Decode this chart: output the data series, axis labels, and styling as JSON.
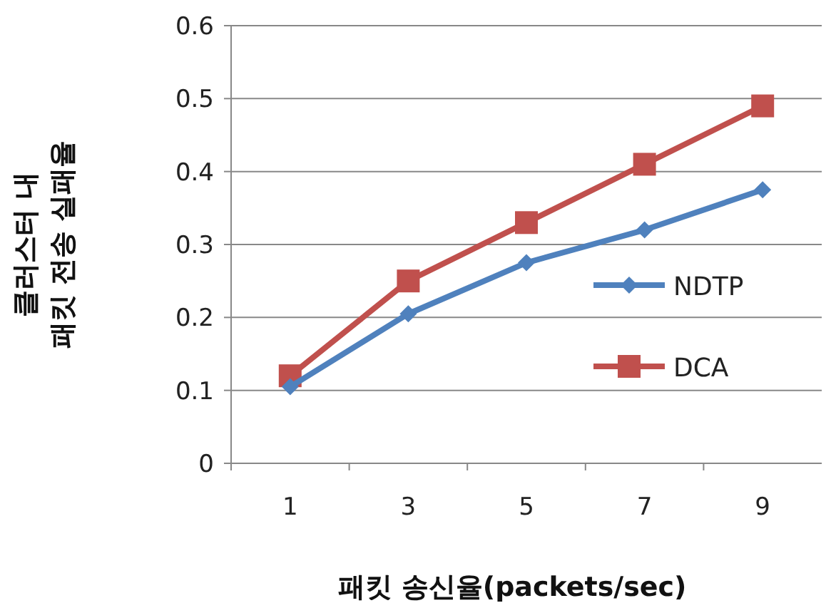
{
  "chart_data": {
    "type": "line",
    "xlabel": "패킷 송신율(packets/sec)",
    "ylabel": "클러스터 내\n패킷 전송 실패율",
    "categories": [
      "1",
      "3",
      "5",
      "7",
      "9"
    ],
    "series": [
      {
        "name": "NDTP",
        "color": "#4f81bd",
        "marker": "diamond",
        "values": [
          0.105,
          0.205,
          0.275,
          0.32,
          0.375
        ]
      },
      {
        "name": "DCA",
        "color": "#c0504d",
        "marker": "square",
        "values": [
          0.12,
          0.25,
          0.33,
          0.41,
          0.49
        ]
      }
    ],
    "ylim": [
      0,
      0.6
    ],
    "yticks": [
      0,
      0.1,
      0.2,
      0.3,
      0.4,
      0.5,
      0.6
    ],
    "grid": "y",
    "legend": "right"
  }
}
